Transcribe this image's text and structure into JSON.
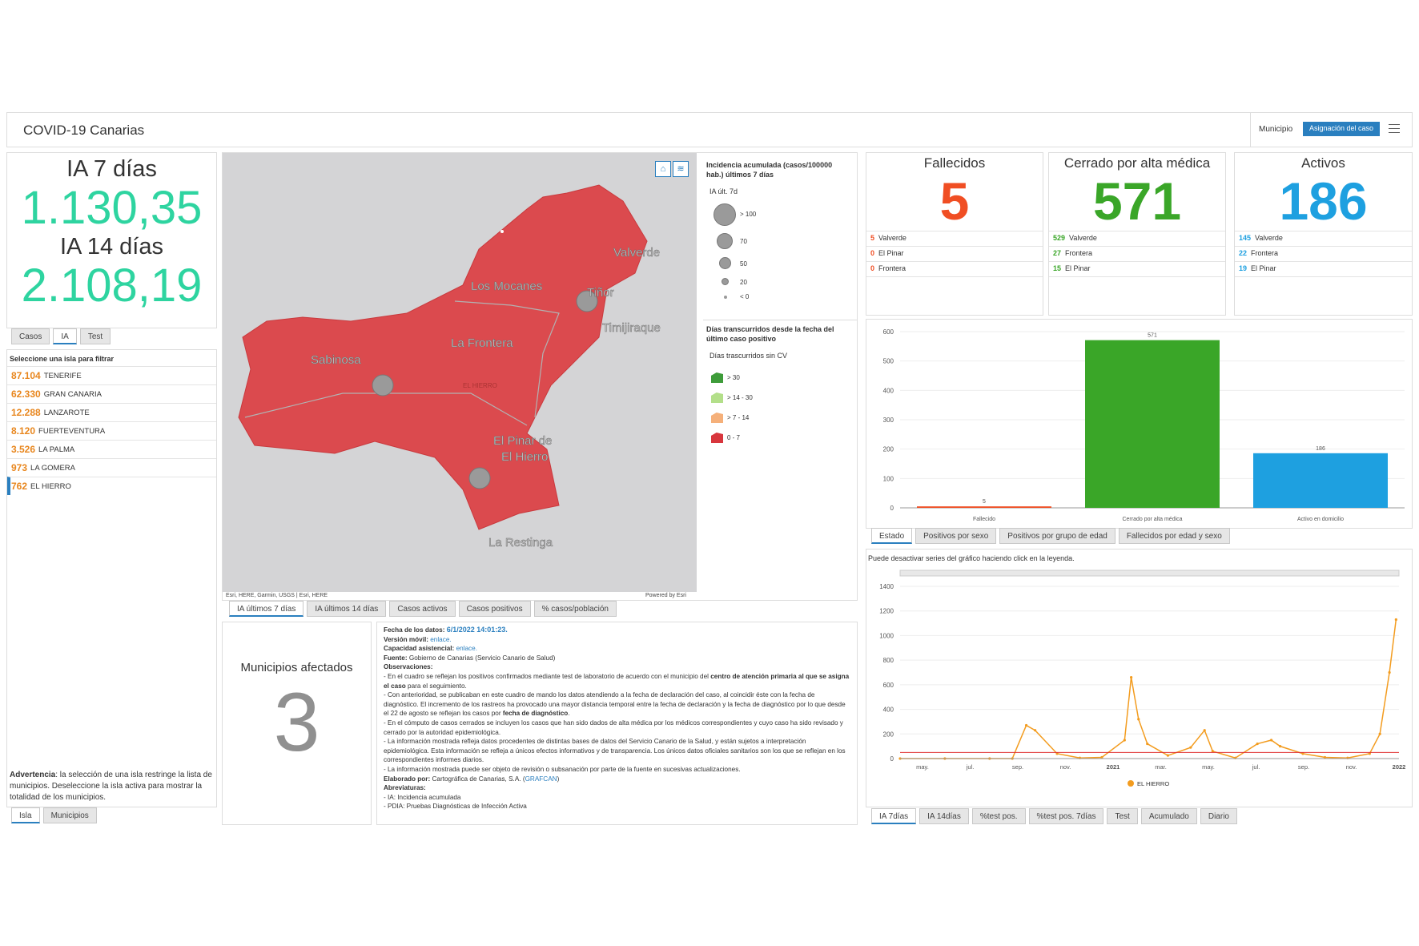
{
  "header": {
    "title": "COVID-19 Canarias",
    "municipio_label": "Municipio",
    "asignacion_label": "Asignación del caso"
  },
  "ia": {
    "label7": "IA 7 días",
    "value7": "1.130,35",
    "label14": "IA 14 días",
    "value14": "2.108,19"
  },
  "left_tabs": [
    "Casos",
    "IA",
    "Test"
  ],
  "islands": {
    "heading": "Seleccione una isla para filtrar",
    "items": [
      {
        "value": "87.104",
        "name": "TENERIFE"
      },
      {
        "value": "62.330",
        "name": "GRAN CANARIA"
      },
      {
        "value": "12.288",
        "name": "LANZAROTE"
      },
      {
        "value": "8.120",
        "name": "FUERTEVENTURA"
      },
      {
        "value": "3.526",
        "name": "LA PALMA"
      },
      {
        "value": "973",
        "name": "LA GOMERA"
      },
      {
        "value": "762",
        "name": "EL HIERRO"
      }
    ],
    "warning_bold": "Advertencia",
    "warning_text": ": la selección de una isla restringe la lista de municipios. Deseleccione la isla activa para mostrar la totalidad de los municipios."
  },
  "bottom_left_tabs": [
    "Isla",
    "Municipios"
  ],
  "map": {
    "labels": [
      "Valverde",
      "Los Mocanes",
      "Tiñor",
      "Timijiraque",
      "La Frontera",
      "Sabinosa",
      "EL HIERRO",
      "El Pinar de",
      "El Hierro",
      "La Restinga"
    ],
    "attribution": "Esri, HERE, Garmin, USGS | Esri, HERE",
    "powered": "Powered by Esri",
    "fill_color": "#db4a4e"
  },
  "legend": {
    "title1": "Incidencia acumulada (casos/100000 hab.) últimos 7 días",
    "sub1": "IA últ. 7d",
    "circles": [
      "> 100",
      "70",
      "50",
      "20",
      "< 0"
    ],
    "title2": "Días transcurridos desde la fecha del último caso positivo",
    "sub2": "Días trascurridos sin CV",
    "classes": [
      {
        "label": "> 30",
        "color": "#3e9c3a"
      },
      {
        "label": "> 14 - 30",
        "color": "#b3df8a"
      },
      {
        "label": "> 7 - 14",
        "color": "#f5b07a"
      },
      {
        "label": "0 - 7",
        "color": "#d8363d"
      }
    ]
  },
  "map_tabs": [
    "IA últimos 7 días",
    "IA últimos 14 días",
    "Casos activos",
    "Casos positivos",
    "% casos/población"
  ],
  "municipios": {
    "label": "Municipios afectados",
    "value": "3"
  },
  "info": {
    "fecha_label": "Fecha de los datos:",
    "fecha_value": "6/1/2022 14:01:23.",
    "movil_label": "Versión móvil:",
    "movil_link": "enlace.",
    "capacidad_label": "Capacidad asistencial:",
    "capacidad_link": "enlace.",
    "fuente_label": "Fuente:",
    "fuente_value": "Gobierno de Canarias (Servicio Canario de Salud)",
    "obs_label": "Observaciones:",
    "obs1a": "- En el cuadro se reflejan los positivos confirmados mediante test de laboratorio de acuerdo con el municipio del ",
    "obs1b": "centro de atención primaria al que se asigna el caso",
    "obs1c": " para el seguimiento.",
    "obs2a": "- Con anterioridad, se publicaban en este cuadro de mando los datos atendiendo a la fecha de declaración del caso, al coincidir éste con la fecha de diagnóstico. El incremento de los rastreos ha provocado una mayor distancia temporal entre la fecha de declaración y la fecha de diagnóstico por lo que desde el 22 de agosto se reflejan los casos por ",
    "obs2b": "fecha de diagnóstico",
    "obs2c": ".",
    "obs3": "- En el cómputo de casos cerrados se incluyen los casos que han sido dados de alta médica por los médicos correspondientes y cuyo caso ha sido revisado y cerrado por la autoridad epidemiológica.",
    "obs4": "- La información mostrada refleja datos procedentes de distintas bases de datos del Servicio Canario de la Salud, y están sujetos a interpretación epidemiológica. Esta información se refleja a únicos efectos informativos y de transparencia. Los únicos datos oficiales sanitarios son los que se reflejan en los correspondientes informes diarios.",
    "obs5": "- La información mostrada puede ser objeto de revisión o subsanación por parte de la fuente en sucesivas actualizaciones.",
    "elab_label": "Elaborado por:",
    "elab_value": "Cartográfica de Canarias, S.A. (",
    "elab_link": "GRAFCAN",
    "elab_end": ")",
    "abrev_label": "Abreviaturas:",
    "abrev1": "- IA: Incidencia acumulada",
    "abrev2": "- PDIA: Pruebas Diagnósticas de Infección Activa"
  },
  "cards": [
    {
      "title": "Fallecidos",
      "value": "5",
      "color": "#f04e23",
      "rows": [
        {
          "n": "5",
          "m": "Valverde"
        },
        {
          "n": "0",
          "m": "El Pinar"
        },
        {
          "n": "0",
          "m": "Frontera"
        }
      ]
    },
    {
      "title": "Cerrado por alta médica",
      "value": "571",
      "color": "#3aa628",
      "rows": [
        {
          "n": "529",
          "m": "Valverde"
        },
        {
          "n": "27",
          "m": "Frontera"
        },
        {
          "n": "15",
          "m": "El Pinar"
        }
      ]
    },
    {
      "title": "Activos",
      "value": "186",
      "color": "#1ea0e0",
      "rows": [
        {
          "n": "145",
          "m": "Valverde"
        },
        {
          "n": "22",
          "m": "Frontera"
        },
        {
          "n": "19",
          "m": "El Pinar"
        }
      ]
    }
  ],
  "bar_tabs": [
    "Estado",
    "Positivos por sexo",
    "Positivos por grupo de edad",
    "Fallecidos por edad y sexo"
  ],
  "line_note": "Puede desactivar series del gráfico haciendo click en la leyenda.",
  "line_tabs": [
    "IA 7días",
    "IA 14días",
    "%test pos.",
    "%test pos. 7días",
    "Test",
    "Acumulado",
    "Diario"
  ],
  "chart_data": [
    {
      "type": "bar",
      "categories": [
        "Fallecido",
        "Cerrado por alta médica",
        "Activo en domicilio"
      ],
      "values": [
        5,
        571,
        186
      ],
      "colors": [
        "#f04e23",
        "#3aa628",
        "#1ea0e0"
      ],
      "yticks": [
        0,
        100,
        200,
        300,
        400,
        500,
        600
      ],
      "ylim": [
        0,
        600
      ]
    },
    {
      "type": "line",
      "series": [
        {
          "name": "EL HIERRO",
          "color": "#f39c1f",
          "x": [
            "2020-03",
            "2020-05",
            "2020-07",
            "2020-08",
            "2020-08-20",
            "2020-09",
            "2020-10",
            "2020-11",
            "2020-12",
            "2021-01-01",
            "2021-01-10",
            "2021-01-20",
            "2021-02",
            "2021-03",
            "2021-04",
            "2021-04-20",
            "2021-05",
            "2021-06",
            "2021-07",
            "2021-07-20",
            "2021-08",
            "2021-09",
            "2021-10",
            "2021-11",
            "2021-12",
            "2021-12-15",
            "2021-12-28",
            "2022-01-06"
          ],
          "values": [
            0,
            0,
            0,
            0,
            270,
            230,
            40,
            5,
            10,
            150,
            660,
            320,
            120,
            25,
            90,
            230,
            60,
            5,
            120,
            150,
            100,
            40,
            10,
            5,
            40,
            200,
            700,
            1130
          ]
        }
      ],
      "x_ticks": [
        "may.",
        "jul.",
        "sep.",
        "nov.",
        "2021",
        "mar.",
        "may.",
        "jul.",
        "sep.",
        "nov.",
        "2022"
      ],
      "yticks": [
        0,
        200,
        400,
        600,
        800,
        1000,
        1200,
        1400
      ],
      "ylim": [
        0,
        1400
      ],
      "threshold": 50,
      "threshold_color": "#e03030"
    }
  ]
}
